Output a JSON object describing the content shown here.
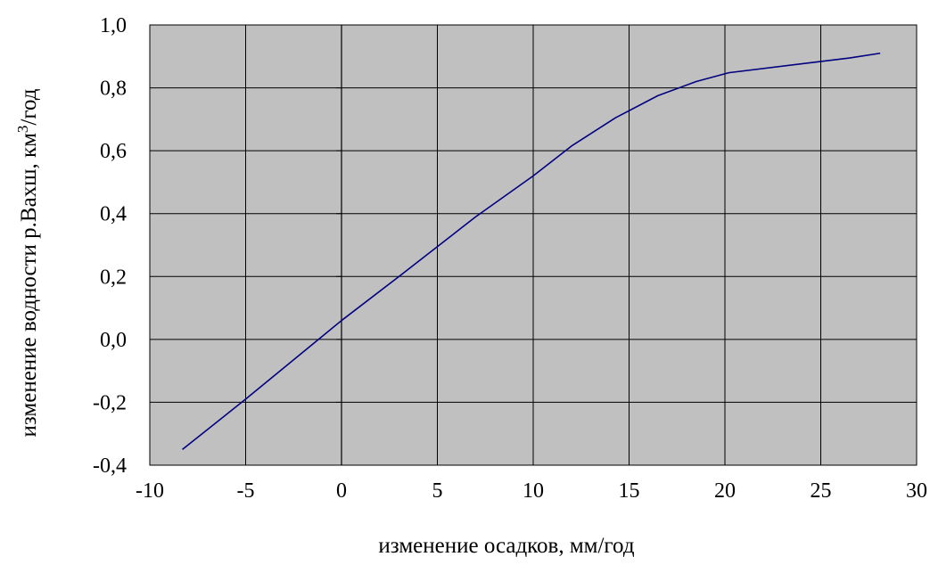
{
  "chart_data": {
    "type": "line",
    "xlabel": "изменение осадков, мм/год",
    "ylabel": "изменение водности р.Вахш, км",
    "ylabel_superscript": "3",
    "ylabel_suffix": "/год",
    "xlim": [
      -10,
      30
    ],
    "ylim": [
      -0.4,
      1.0
    ],
    "x_ticks": [
      -10,
      -5,
      0,
      5,
      10,
      15,
      20,
      25,
      30
    ],
    "x_tick_labels": [
      "-10",
      "-5",
      "0",
      "5",
      "10",
      "15",
      "20",
      "25",
      "30"
    ],
    "y_ticks": [
      -0.4,
      -0.2,
      0.0,
      0.2,
      0.4,
      0.6,
      0.8,
      1.0
    ],
    "y_tick_labels": [
      "-0,4",
      "-0,2",
      "0,0",
      "0,2",
      "0,4",
      "0,6",
      "0,8",
      "1,0"
    ],
    "grid": true,
    "series": [
      {
        "x": [
          -8.3,
          -5.0,
          0.0,
          3.0,
          7.0,
          10.0,
          12.0,
          14.3,
          16.5,
          18.5,
          20.2,
          26.5,
          28.1
        ],
        "y": [
          -0.35,
          -0.19,
          0.06,
          0.2,
          0.39,
          0.52,
          0.615,
          0.705,
          0.775,
          0.82,
          0.848,
          0.895,
          0.91
        ]
      }
    ],
    "colors": {
      "plot_background": "#c0c0c0",
      "grid": "#000000",
      "line": "#000080",
      "page_background": "#ffffff"
    }
  }
}
